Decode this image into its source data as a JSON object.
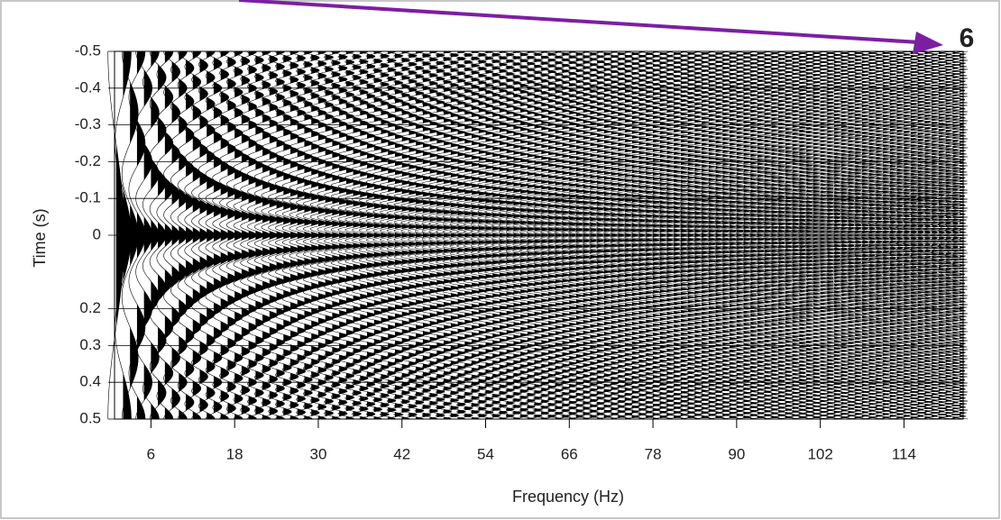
{
  "chart_data": {
    "type": "wiggle",
    "x_label": "Frequency (Hz)",
    "y_label": "Time (s)",
    "annotation": "6",
    "annotation_color": "#7b1fa2",
    "color": "#000000",
    "xlim": [
      0,
      123
    ],
    "ylim": [
      -0.5,
      0.5
    ],
    "xticks": [
      6,
      18,
      30,
      42,
      54,
      66,
      78,
      90,
      102,
      114
    ],
    "yticks": [
      -0.5,
      -0.4,
      -0.3,
      -0.2,
      -0.1,
      0,
      0.2,
      0.3,
      0.4,
      0.5
    ],
    "grid": true,
    "x": [
      1,
      2,
      3,
      4,
      5,
      6,
      7,
      8,
      9,
      10,
      11,
      12,
      13,
      14,
      15,
      16,
      17,
      18,
      19,
      20,
      21,
      22,
      23,
      24,
      25,
      26,
      27,
      28,
      29,
      30,
      31,
      32,
      33,
      34,
      35,
      36,
      37,
      38,
      39,
      40,
      41,
      42,
      43,
      44,
      45,
      46,
      47,
      48,
      49,
      50,
      51,
      52,
      53,
      54,
      55,
      56,
      57,
      58,
      59,
      60,
      61,
      62,
      63,
      64,
      65,
      66,
      67,
      68,
      69,
      70,
      71,
      72,
      73,
      74,
      75,
      76,
      77,
      78,
      79,
      80,
      81,
      82,
      83,
      84,
      85,
      86,
      87,
      88,
      89,
      90,
      91,
      92,
      93,
      94,
      95,
      96,
      97,
      98,
      99,
      100,
      101,
      102,
      103,
      104,
      105,
      106,
      107,
      108,
      109,
      110,
      111,
      112,
      113,
      114,
      115,
      116,
      117,
      118,
      119,
      120,
      121,
      122
    ]
  }
}
